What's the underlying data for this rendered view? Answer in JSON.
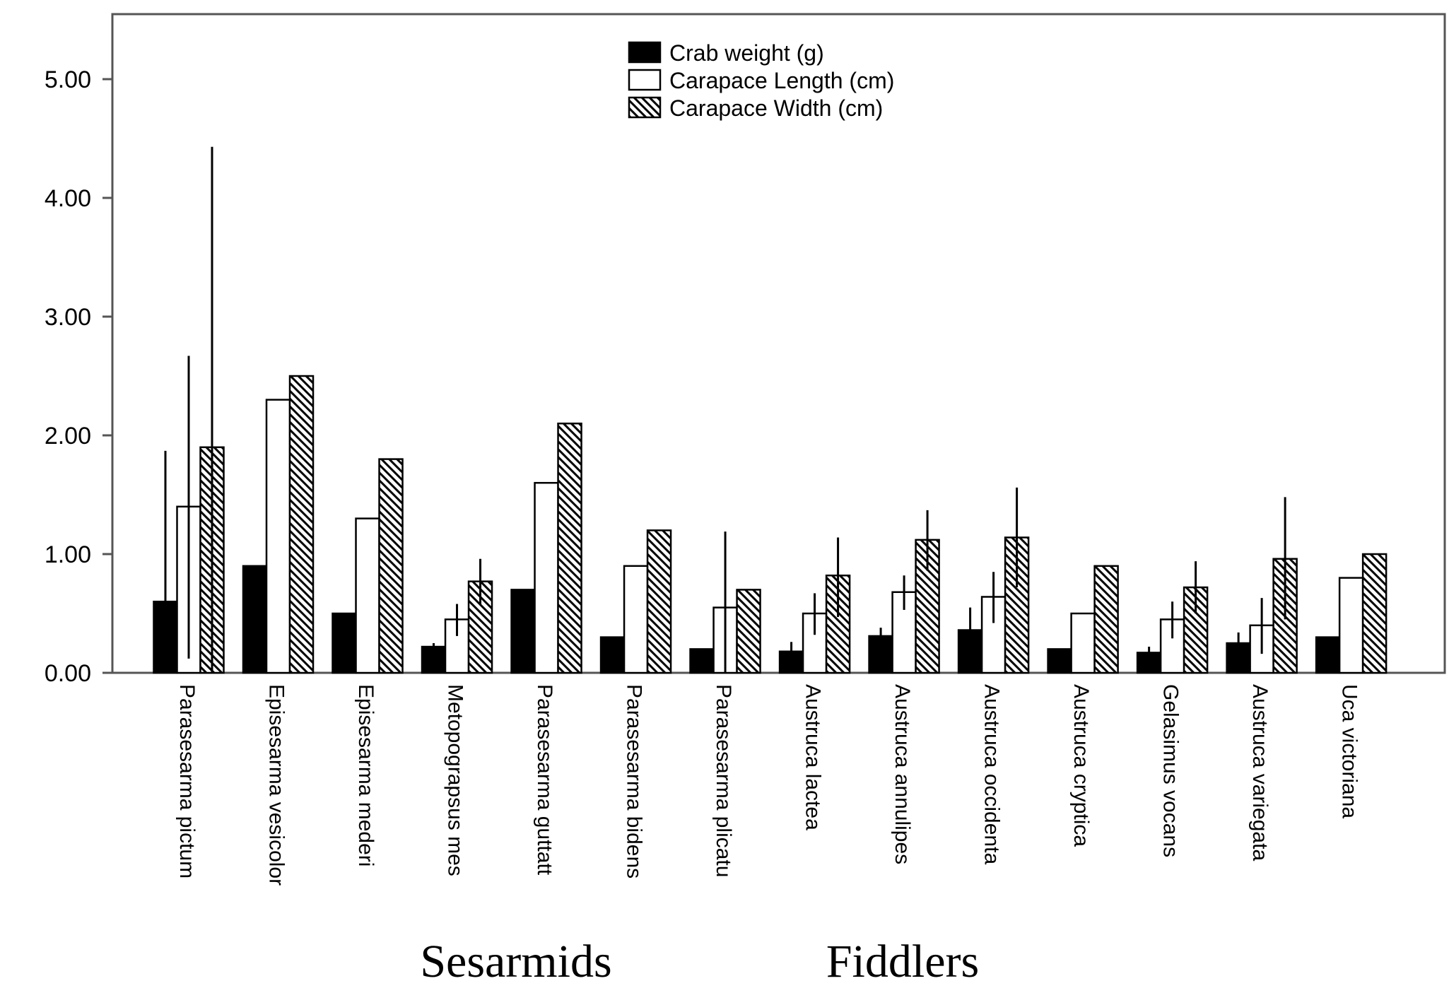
{
  "chart_data": {
    "type": "bar",
    "categories": [
      "Parasesarma pictum",
      "Episesarma vesicolor",
      "Episesarma mederi",
      "Metopograpsus mes",
      "Parasesarma guttatt",
      "Parasesarma bidens",
      "Parasesarma plicatu",
      "Austruca lactea",
      "Austruca annulipes",
      "Austruca occidenta",
      "Austruca cryptica",
      "Gelasimus vocans",
      "Austruca variegata",
      "Uca victoriana"
    ],
    "series": [
      {
        "name": "Crab weight (g)",
        "fill": "solid",
        "values": [
          0.6,
          0.9,
          0.5,
          0.22,
          0.7,
          0.3,
          0.2,
          0.18,
          0.31,
          0.36,
          0.2,
          0.17,
          0.25,
          0.3
        ],
        "error": [
          [
            0.0,
            1.87
          ],
          null,
          null,
          [
            0.19,
            0.25
          ],
          null,
          null,
          null,
          [
            0.1,
            0.26
          ],
          [
            0.24,
            0.38
          ],
          [
            0.17,
            0.55
          ],
          null,
          [
            0.12,
            0.22
          ],
          [
            0.16,
            0.34
          ],
          null
        ]
      },
      {
        "name": "Carapace Length (cm)",
        "fill": "white",
        "values": [
          1.4,
          2.3,
          1.3,
          0.45,
          1.6,
          0.9,
          0.55,
          0.5,
          0.68,
          0.64,
          0.5,
          0.45,
          0.4,
          0.8
        ],
        "error": [
          [
            0.12,
            2.67
          ],
          null,
          null,
          [
            0.31,
            0.58
          ],
          null,
          null,
          [
            0.0,
            1.19
          ],
          [
            0.32,
            0.67
          ],
          [
            0.53,
            0.82
          ],
          [
            0.42,
            0.85
          ],
          null,
          [
            0.29,
            0.6
          ],
          [
            0.16,
            0.63
          ],
          null
        ]
      },
      {
        "name": "Carapace Width (cm)",
        "fill": "hatched",
        "values": [
          1.9,
          2.5,
          1.8,
          0.77,
          2.1,
          1.2,
          0.7,
          0.82,
          1.12,
          1.14,
          0.9,
          0.72,
          0.96,
          1.0
        ],
        "error": [
          [
            0.0,
            4.43
          ],
          null,
          null,
          [
            0.57,
            0.96
          ],
          null,
          null,
          null,
          [
            0.47,
            1.14
          ],
          [
            0.86,
            1.37
          ],
          [
            0.72,
            1.56
          ],
          null,
          [
            0.5,
            0.94
          ],
          [
            0.45,
            1.48
          ],
          null
        ]
      }
    ],
    "y_ticks": [
      "0.00",
      "1.00",
      "2.00",
      "3.00",
      "4.00",
      "5.00"
    ],
    "ylim": [
      0,
      5.55
    ],
    "legend_position": "top-center",
    "group_labels": [
      "Sesarmids",
      "Fiddlers"
    ],
    "grid": false,
    "colors": {
      "solid": "#000000",
      "white": "#ffffff",
      "edge": "#000000",
      "axis": "#555555"
    }
  }
}
